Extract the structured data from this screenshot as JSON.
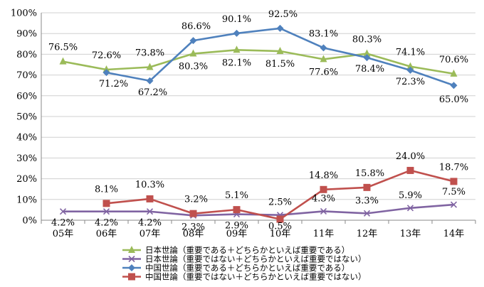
{
  "chart_data": {
    "type": "line",
    "categories": [
      "05年",
      "06年",
      "07年",
      "08年",
      "09年",
      "10年",
      "11年",
      "12年",
      "13年",
      "14年"
    ],
    "ylim": [
      0,
      100
    ],
    "yticks": [
      "0%",
      "10%",
      "20%",
      "30%",
      "40%",
      "50%",
      "60%",
      "70%",
      "80%",
      "90%",
      "100%"
    ],
    "grid": true,
    "legend_position": "bottom",
    "series": [
      {
        "name": "日本世論（重要である＋どちらかといえば重要である）",
        "color": "#9BBB59",
        "marker": "triangle",
        "values": [
          76.5,
          72.6,
          73.8,
          80.3,
          82.1,
          81.5,
          77.6,
          80.3,
          74.1,
          70.6
        ],
        "labels": [
          "76.5%",
          "72.6%",
          "73.8%",
          "80.3%",
          "82.1%",
          "81.5%",
          "77.6%",
          "80.3%",
          "74.1%",
          "70.6%"
        ]
      },
      {
        "name": "日本世論（重要ではない＋どちらかといえば重要ではない）",
        "color": "#8064A2",
        "marker": "x",
        "values": [
          4.2,
          4.2,
          4.2,
          2.3,
          2.9,
          2.5,
          4.3,
          3.3,
          5.9,
          7.5
        ],
        "labels": [
          "4.2%",
          "4.2%",
          "4.2%",
          "2.3%",
          "2.9%",
          "2.5%",
          "4.3%",
          "3.3%",
          "5.9%",
          "7.5%"
        ]
      },
      {
        "name": "中国世論（重要である＋どちらかといえば重要である）",
        "color": "#4F81BD",
        "marker": "diamond",
        "values": [
          null,
          71.2,
          67.2,
          86.6,
          90.1,
          92.5,
          83.1,
          78.4,
          72.3,
          65.0
        ],
        "labels": [
          "",
          "71.2%",
          "67.2%",
          "86.6%",
          "90.1%",
          "92.5%",
          "83.1%",
          "78.4%",
          "72.3%",
          "65.0%"
        ]
      },
      {
        "name": "中国世論（重要ではない＋どちらかといえば重要ではない）",
        "color": "#C0504D",
        "marker": "square",
        "values": [
          null,
          8.1,
          10.3,
          3.2,
          5.1,
          0.5,
          14.8,
          15.8,
          24.0,
          18.7
        ],
        "labels": [
          "",
          "8.1%",
          "10.3%",
          "3.2%",
          "5.1%",
          "0.5%",
          "14.8%",
          "15.8%",
          "24.0%",
          "18.7%"
        ]
      }
    ]
  }
}
